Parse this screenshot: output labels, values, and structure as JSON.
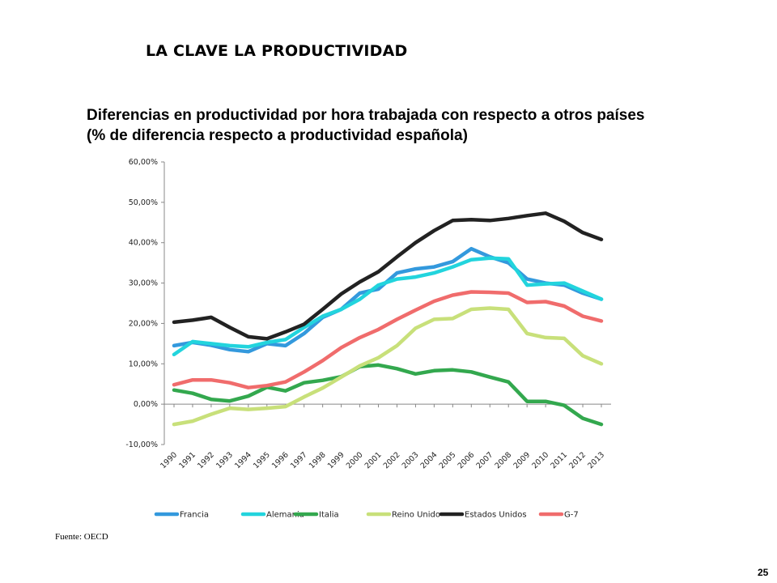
{
  "slide": {
    "title": "LA CLAVE LA PRODUCTIVIDAD",
    "source": "Fuente: OECD",
    "page_number": "25"
  },
  "chart_data": {
    "type": "line",
    "title_line1": "Diferencias en productividad por hora trabajada con respecto a otros países",
    "title_line2": "(% de diferencia respecto a productividad española)",
    "xlabel": "",
    "ylabel": "",
    "ylim": [
      -10,
      60
    ],
    "y_ticks": [
      60,
      50,
      40,
      30,
      20,
      10,
      0,
      -10
    ],
    "y_tick_labels": [
      "60,00%",
      "50,00%",
      "40,00%",
      "30,00%",
      "20,00%",
      "10,00%",
      "0,00%",
      "-10,00%"
    ],
    "grid": false,
    "legend_position": "bottom",
    "categories": [
      "1990",
      "1991",
      "1992",
      "1993",
      "1994",
      "1995",
      "1996",
      "1997",
      "1998",
      "1999",
      "2000",
      "2001",
      "2002",
      "2003",
      "2004",
      "2005",
      "2006",
      "2007",
      "2008",
      "2009",
      "2010",
      "2011",
      "2012",
      "2013"
    ],
    "series": [
      {
        "name": "Francia",
        "color": "#3399dd",
        "values": [
          14.5,
          15.3,
          14.6,
          13.5,
          13.0,
          15.0,
          14.5,
          17.5,
          21.5,
          23.5,
          27.5,
          28.5,
          32.5,
          33.5,
          34.0,
          35.3,
          38.5,
          36.5,
          35.0,
          31.0,
          30.0,
          29.5,
          27.5,
          26.0
        ]
      },
      {
        "name": "Alemania",
        "color": "#22d4dd",
        "values": [
          12.3,
          15.5,
          15.0,
          14.5,
          14.2,
          15.3,
          16.0,
          19.0,
          21.8,
          23.5,
          26.0,
          29.5,
          31.0,
          31.5,
          32.5,
          34.0,
          35.8,
          36.2,
          36.0,
          29.5,
          29.8,
          30.0,
          28.0,
          26.0
        ]
      },
      {
        "name": "Italia",
        "color": "#33a84e",
        "values": [
          3.5,
          2.7,
          1.2,
          0.8,
          2.0,
          4.2,
          3.3,
          5.3,
          5.9,
          6.8,
          9.3,
          9.7,
          8.8,
          7.5,
          8.3,
          8.5,
          8.0,
          6.7,
          5.5,
          0.7,
          0.7,
          -0.3,
          -3.5,
          -5.0
        ]
      },
      {
        "name": "Reino Unido",
        "color": "#c8e07a",
        "values": [
          -5.0,
          -4.2,
          -2.5,
          -1.0,
          -1.3,
          -1.0,
          -0.6,
          1.8,
          4.0,
          6.7,
          9.5,
          11.5,
          14.5,
          18.8,
          21.0,
          21.2,
          23.5,
          23.8,
          23.5,
          17.5,
          16.5,
          16.3,
          12.0,
          10.0
        ]
      },
      {
        "name": "Estados Unidos",
        "color": "#222222",
        "values": [
          20.3,
          20.8,
          21.5,
          19.0,
          16.7,
          16.2,
          17.9,
          19.8,
          23.5,
          27.3,
          30.3,
          32.8,
          36.5,
          40.0,
          43.0,
          45.5,
          45.7,
          45.5,
          46.0,
          46.7,
          47.3,
          45.3,
          42.5,
          40.8
        ]
      },
      {
        "name": "G-7",
        "color": "#f06c6c",
        "values": [
          4.8,
          6.0,
          6.0,
          5.3,
          4.1,
          4.6,
          5.5,
          8.0,
          10.8,
          14.0,
          16.5,
          18.5,
          21.0,
          23.3,
          25.5,
          27.0,
          27.8,
          27.7,
          27.5,
          25.2,
          25.4,
          24.3,
          21.8,
          20.6
        ]
      }
    ]
  }
}
